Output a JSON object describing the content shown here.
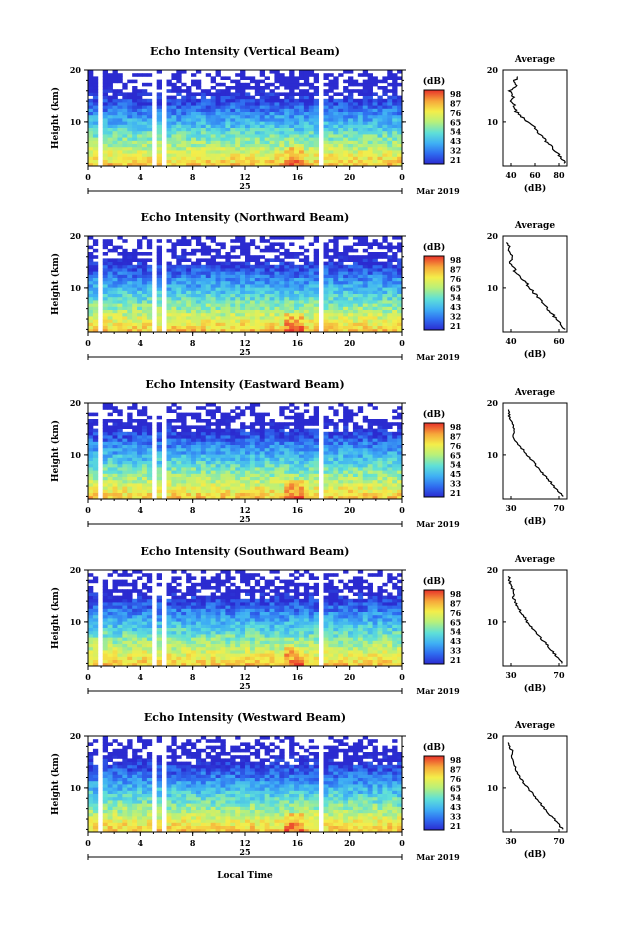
{
  "figure": {
    "date_label": "Mar 2019",
    "day_label": "25",
    "xlabel_bottom": "Local Time",
    "ylabel": "Height (km)",
    "cbar_unit": "(dB)",
    "avg_title": "Average",
    "avg_xlabel": "(dB)",
    "x_ticks": [
      "0",
      "4",
      "8",
      "12",
      "16",
      "20",
      "0"
    ],
    "y_ticks": [
      "20",
      "10"
    ],
    "colorbar_ticks": [
      "98",
      "87",
      "76",
      "65",
      "54",
      "43",
      "32",
      "21"
    ]
  },
  "chart_data": [
    {
      "type": "heatmap",
      "title": "Echo Intensity (Vertical Beam)",
      "ylabel": "Height (km)",
      "ylim": [
        1.5,
        20
      ],
      "xlim": [
        0,
        24
      ],
      "x_ticks": [
        0,
        4,
        8,
        12,
        16,
        20,
        24
      ],
      "colorbar": {
        "unit": "(dB)",
        "ticks": [
          98,
          87,
          76,
          65,
          54,
          43,
          32,
          21
        ]
      },
      "data_gaps_hours": [
        [
          0.8,
          1.1
        ],
        [
          5.0,
          5.3
        ],
        [
          5.7,
          5.9
        ],
        [
          17.7,
          18.0
        ]
      ],
      "profile": {
        "title": "Average",
        "xlabel": "(dB)",
        "xlim": [
          35,
          80
        ],
        "x_ticks": [
          "40",
          "60",
          "80"
        ],
        "height_km": [
          2,
          3,
          4,
          5,
          6,
          7,
          8,
          9,
          10,
          11,
          12,
          13,
          14,
          15,
          16,
          17,
          18,
          19
        ],
        "avg_db": [
          79,
          76,
          73,
          70,
          66,
          63,
          60,
          57,
          52,
          48,
          44,
          43,
          41,
          42,
          40,
          44,
          43,
          47
        ]
      }
    },
    {
      "type": "heatmap",
      "title": "Echo Intensity (Northward Beam)",
      "ylabel": "Height (km)",
      "ylim": [
        1.5,
        20
      ],
      "xlim": [
        0,
        24
      ],
      "x_ticks": [
        0,
        4,
        8,
        12,
        16,
        20,
        24
      ],
      "colorbar": {
        "unit": "(dB)",
        "ticks": [
          98,
          87,
          76,
          65,
          54,
          43,
          32,
          21
        ]
      },
      "data_gaps_hours": [
        [
          0.8,
          1.1
        ],
        [
          5.0,
          5.3
        ],
        [
          5.7,
          5.9
        ],
        [
          17.7,
          18.0
        ]
      ],
      "profile": {
        "title": "Average",
        "xlabel": "(dB)",
        "xlim": [
          25,
          70
        ],
        "x_ticks": [
          "40",
          "60"
        ],
        "height_km": [
          2,
          3,
          4,
          5,
          6,
          7,
          8,
          9,
          10,
          11,
          12,
          13,
          14,
          15,
          16,
          17,
          18,
          19
        ],
        "avg_db": [
          68,
          66,
          62,
          60,
          56,
          53,
          50,
          47,
          44,
          41,
          38,
          34,
          32,
          30,
          32,
          30,
          29,
          28
        ]
      }
    },
    {
      "type": "heatmap",
      "title": "Echo Intensity (Eastward Beam)",
      "ylabel": "Height (km)",
      "ylim": [
        1.5,
        20
      ],
      "xlim": [
        0,
        24
      ],
      "x_ticks": [
        0,
        4,
        8,
        12,
        16,
        20,
        24
      ],
      "colorbar": {
        "unit": "(dB)",
        "ticks": [
          98,
          87,
          76,
          65,
          54,
          45,
          33,
          21
        ]
      },
      "data_gaps_hours": [
        [
          0.8,
          1.1
        ],
        [
          5.0,
          5.3
        ],
        [
          5.7,
          5.9
        ],
        [
          17.7,
          18.0
        ]
      ],
      "profile": {
        "title": "Average",
        "xlabel": "(dB)",
        "xlim": [
          22,
          80
        ],
        "x_ticks": [
          "30",
          "70"
        ],
        "height_km": [
          2,
          3,
          4,
          5,
          6,
          7,
          8,
          9,
          10,
          11,
          12,
          13,
          14,
          15,
          16,
          17,
          18,
          19
        ],
        "avg_db": [
          76,
          72,
          68,
          64,
          60,
          56,
          52,
          48,
          44,
          40,
          36,
          33,
          31,
          32,
          30,
          29,
          27,
          27
        ]
      }
    },
    {
      "type": "heatmap",
      "title": "Echo Intensity (Southward Beam)",
      "ylabel": "Height (km)",
      "ylim": [
        1.5,
        20
      ],
      "xlim": [
        0,
        24
      ],
      "x_ticks": [
        0,
        4,
        8,
        12,
        16,
        20,
        24
      ],
      "colorbar": {
        "unit": "(dB)",
        "ticks": [
          98,
          87,
          76,
          65,
          54,
          43,
          33,
          21
        ]
      },
      "data_gaps_hours": [
        [
          0.8,
          1.1
        ],
        [
          5.0,
          5.3
        ],
        [
          5.7,
          5.9
        ],
        [
          17.7,
          18.0
        ]
      ],
      "profile": {
        "title": "Average",
        "xlabel": "(dB)",
        "xlim": [
          22,
          80
        ],
        "x_ticks": [
          "30",
          "70"
        ],
        "height_km": [
          2,
          3,
          4,
          5,
          6,
          7,
          8,
          9,
          10,
          11,
          12,
          13,
          14,
          15,
          16,
          17,
          18,
          19
        ],
        "avg_db": [
          76,
          72,
          68,
          64,
          60,
          56,
          52,
          48,
          44,
          41,
          38,
          35,
          33,
          31,
          32,
          29,
          28,
          27
        ]
      }
    },
    {
      "type": "heatmap",
      "title": "Echo Intensity (Westward Beam)",
      "ylabel": "Height (km)",
      "ylim": [
        1.5,
        20
      ],
      "xlim": [
        0,
        24
      ],
      "x_ticks": [
        0,
        4,
        8,
        12,
        16,
        20,
        24
      ],
      "colorbar": {
        "unit": "(dB)",
        "ticks": [
          98,
          87,
          76,
          65,
          54,
          43,
          33,
          21
        ]
      },
      "data_gaps_hours": [
        [
          0.8,
          1.1
        ],
        [
          5.0,
          5.3
        ],
        [
          5.7,
          5.9
        ],
        [
          17.7,
          18.0
        ]
      ],
      "profile": {
        "title": "Average",
        "xlabel": "(dB)",
        "xlim": [
          22,
          82
        ],
        "x_ticks": [
          "30",
          "70"
        ],
        "height_km": [
          2,
          3,
          4,
          5,
          6,
          7,
          8,
          9,
          10,
          11,
          12,
          13,
          14,
          15,
          16,
          17,
          18,
          19
        ],
        "avg_db": [
          78,
          74,
          70,
          65,
          61,
          57,
          53,
          49,
          45,
          41,
          38,
          35,
          33,
          32,
          30,
          31,
          28,
          27
        ]
      }
    }
  ]
}
